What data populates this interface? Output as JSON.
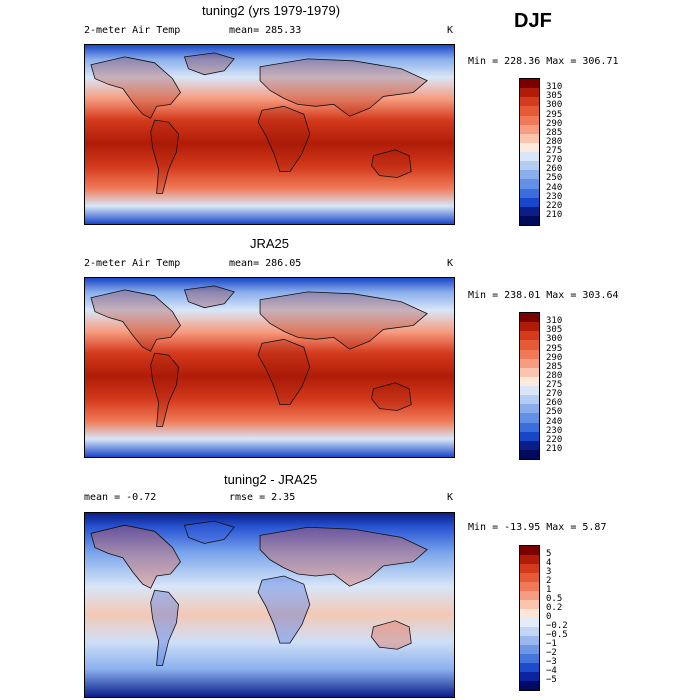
{
  "season": "DJF",
  "panels": [
    {
      "title": "tuning2 (yrs 1979-1979)",
      "left": "2-meter Air Temp",
      "center": "mean= 285.33",
      "unit": "K",
      "stats": "Min = 228.36  Max = 306.71",
      "levels": [
        "310",
        "305",
        "300",
        "295",
        "290",
        "285",
        "280",
        "275",
        "270",
        "260",
        "250",
        "240",
        "230",
        "220",
        "210"
      ],
      "palette": "temp"
    },
    {
      "title": "JRA25",
      "left": "2-meter Air Temp",
      "center": "mean= 286.05",
      "unit": "K",
      "stats": "Min = 238.01  Max = 303.64",
      "levels": [
        "310",
        "305",
        "300",
        "295",
        "290",
        "285",
        "280",
        "275",
        "270",
        "260",
        "250",
        "240",
        "230",
        "220",
        "210"
      ],
      "palette": "temp"
    },
    {
      "title": "tuning2 - JRA25",
      "left": "mean =   -0.72",
      "center": "rmse =    2.35",
      "unit": "K",
      "stats": "Min = -13.95  Max =    5.87",
      "levels": [
        "5",
        "4",
        "3",
        "2",
        "1",
        "0.5",
        "0.2",
        "0",
        "−0.2",
        "−0.5",
        "−1",
        "−2",
        "−3",
        "−4",
        "−5"
      ],
      "palette": "diff"
    }
  ],
  "colors": {
    "temp": [
      "#7a0000",
      "#b01c08",
      "#d43a1c",
      "#e65a36",
      "#f07a58",
      "#f79c80",
      "#fbc4ac",
      "#fdeadc",
      "#d8e6f8",
      "#b4cdf2",
      "#8aaeec",
      "#6290e6",
      "#3a6edc",
      "#1846c8",
      "#0a1e8a",
      "#000a5a"
    ],
    "diff": [
      "#7a0000",
      "#b01c08",
      "#d43a1c",
      "#e65a36",
      "#f07a58",
      "#f79c80",
      "#fbc4ac",
      "#fde6d8",
      "#e2ecfa",
      "#c2d6f4",
      "#9ab8ee",
      "#6e98e6",
      "#4474dc",
      "#1c4ccc",
      "#0a24a0",
      "#000a64"
    ]
  }
}
